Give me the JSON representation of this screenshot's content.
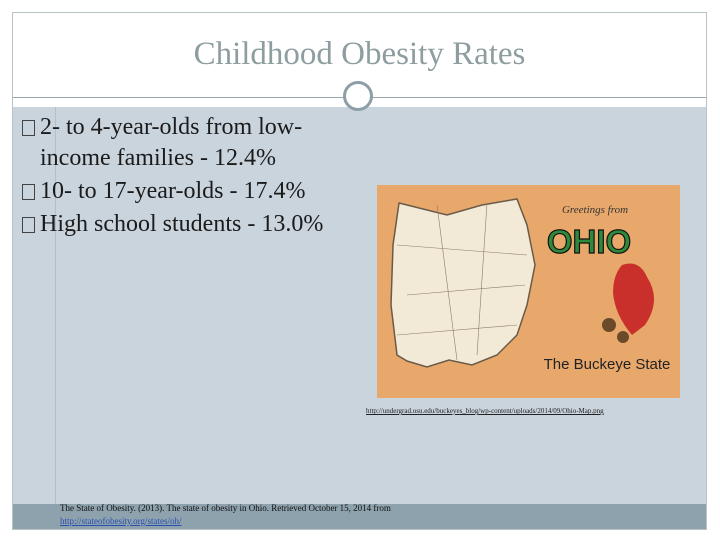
{
  "slide": {
    "title": "Childhood Obesity Rates",
    "bullets": [
      "2- to 4-year-olds from low-income families - 12.4%",
      "10- to 17-year-olds - 17.4%",
      "High school students - 13.0%"
    ],
    "image": {
      "greeting": "Greetings from",
      "state": "OHIO",
      "nickname": "The Buckeye State",
      "source_url": "http://undergrad.osu.edu/buckeyes_blog/wp-content/uploads/2014/09/Ohio-Map.png"
    },
    "citation": {
      "text": "The State of Obesity. (2013). The state of obesity in Ohio. Retrieved October 15, 2014 from",
      "url": "http://stateofobesity.org/states/oh/"
    }
  }
}
